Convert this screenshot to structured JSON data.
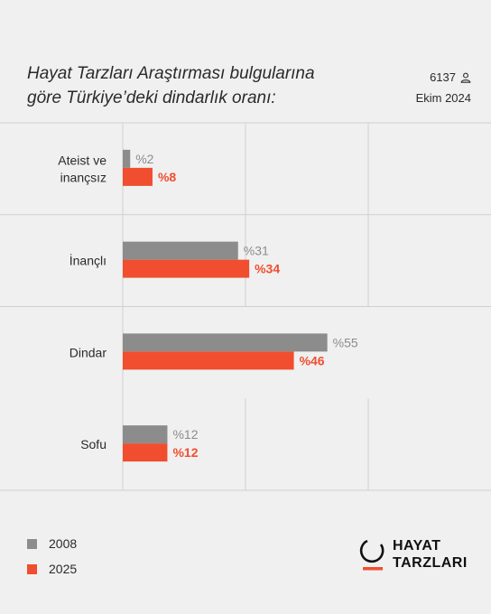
{
  "header": {
    "title_line1": "Hayat Tarzları Araştırması bulgularına",
    "title_line2": "göre Türkiye’deki dindarlık oranı:",
    "respondent_count": "6137",
    "date": "Ekim 2024"
  },
  "colors": {
    "series_2008": "#8c8c8c",
    "series_2025": "#f04e2f",
    "grid": "#cfcfcf",
    "background": "#f0f0f0"
  },
  "chart_data": {
    "type": "bar",
    "orientation": "horizontal",
    "categories": [
      "Ateist ve inançsız",
      "İnançlı",
      "Dindar",
      "Sofu"
    ],
    "category_lines": [
      [
        "Ateist ve",
        "inançsız"
      ],
      [
        "İnançlı"
      ],
      [
        "Dindar"
      ],
      [
        "Sofu"
      ]
    ],
    "series": [
      {
        "name": "2008",
        "values": [
          2,
          31,
          55,
          12
        ],
        "labels": [
          "%2",
          "%31",
          "%55",
          "%12"
        ]
      },
      {
        "name": "2025",
        "values": [
          8,
          34,
          46,
          12
        ],
        "labels": [
          "%8",
          "%34",
          "%46",
          "%12"
        ]
      }
    ],
    "xlim": [
      0,
      100
    ],
    "grid": true
  },
  "legend": {
    "items": [
      "2008",
      "2025"
    ]
  },
  "logo": {
    "line1": "HAYAT",
    "line2": "TARZLARI"
  }
}
